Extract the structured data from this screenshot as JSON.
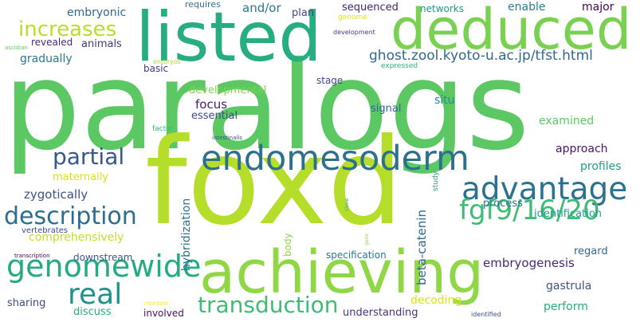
{
  "words": [
    {
      "text": "paralogs",
      "color": "#5cc863"
    },
    {
      "text": "foxd",
      "color": "#b5de2b"
    },
    {
      "text": "listed",
      "color": "#27ad81"
    },
    {
      "text": "deduced",
      "color": "#7ad151"
    },
    {
      "text": "achieving",
      "color": "#8fd744"
    },
    {
      "text": "endomesoderm",
      "color": "#2d708e"
    },
    {
      "text": "advantage",
      "color": "#2c728e"
    },
    {
      "text": "fgf9/16/20",
      "color": "#3dbc74"
    },
    {
      "text": "genomewide",
      "color": "#25ab82"
    },
    {
      "text": "description",
      "color": "#2e6d8e"
    },
    {
      "text": "real",
      "color": "#21918c"
    },
    {
      "text": "transduction",
      "color": "#3dbc74"
    },
    {
      "text": "increases",
      "color": "#b8de29"
    },
    {
      "text": "partial",
      "color": "#39568c"
    },
    {
      "text": "ghost.zool.kyoto-u.ac.jp/tfst.html",
      "color": "#30688e"
    },
    {
      "text": "comprehensively",
      "color": "#c2df23"
    },
    {
      "text": "zygotically",
      "color": "#3b528b"
    },
    {
      "text": "beta-catenin",
      "color": "#31688e"
    },
    {
      "text": "hybridization",
      "color": "#2c728e"
    },
    {
      "text": "embryogenesis",
      "color": "#482777"
    },
    {
      "text": "understanding",
      "color": "#46327e"
    },
    {
      "text": "embryonic",
      "color": "#31688e"
    },
    {
      "text": "and/or",
      "color": "#2a788e"
    },
    {
      "text": "plan",
      "color": "#404688"
    },
    {
      "text": "sequenced",
      "color": "#482071"
    },
    {
      "text": "networks",
      "color": "#1f958b"
    },
    {
      "text": "enable",
      "color": "#287d8e"
    },
    {
      "text": "major",
      "color": "#440154"
    },
    {
      "text": "requires",
      "color": "#2d708e"
    },
    {
      "text": "genome",
      "color": "#d8e219"
    },
    {
      "text": "development",
      "color": "#453781"
    },
    {
      "text": "revealed",
      "color": "#482979"
    },
    {
      "text": "animals",
      "color": "#443983"
    },
    {
      "text": "gradually",
      "color": "#2a788e"
    },
    {
      "text": "ascidian",
      "color": "#63cb5f"
    },
    {
      "text": "embryos",
      "color": "#a8db34"
    },
    {
      "text": "expressed",
      "color": "#2ab07f"
    },
    {
      "text": "basic",
      "color": "#443983"
    },
    {
      "text": "stage",
      "color": "#3f4788"
    },
    {
      "text": "developmental",
      "color": "#7fd34e"
    },
    {
      "text": "focus",
      "color": "#481a6c"
    },
    {
      "text": "essential",
      "color": "#404688"
    },
    {
      "text": "signal",
      "color": "#33638d"
    },
    {
      "text": "situ",
      "color": "#238a8d"
    },
    {
      "text": "examined",
      "color": "#5ec962"
    },
    {
      "text": "approach",
      "color": "#481467"
    },
    {
      "text": "profiles",
      "color": "#1fa088"
    },
    {
      "text": "factor",
      "color": "#35b779"
    },
    {
      "text": "intestinalis",
      "color": "#3b528b"
    },
    {
      "text": "maternally",
      "color": "#d5e21a"
    },
    {
      "text": "process",
      "color": "#2c728e"
    },
    {
      "text": "identification",
      "color": "#1fa088"
    },
    {
      "text": "regard",
      "color": "#31688e"
    },
    {
      "text": "vertebrates",
      "color": "#3e4a89"
    },
    {
      "text": "transcription",
      "color": "#440154"
    },
    {
      "text": "downstream",
      "color": "#375a8c"
    },
    {
      "text": "specification",
      "color": "#2a788e"
    },
    {
      "text": "body",
      "color": "#8fd744"
    },
    {
      "text": "study",
      "color": "#1fa088"
    },
    {
      "text": "clone",
      "color": "#2ab07f"
    },
    {
      "text": "gene",
      "color": "#95d840"
    },
    {
      "text": "gastrula",
      "color": "#3b528b"
    },
    {
      "text": "decoding",
      "color": "#d8e219"
    },
    {
      "text": "perform",
      "color": "#25ab82"
    },
    {
      "text": "sharing",
      "color": "#3e4989"
    },
    {
      "text": "discuss",
      "color": "#25ab82"
    },
    {
      "text": "involved",
      "color": "#471164"
    },
    {
      "text": "chordate",
      "color": "#fde725"
    },
    {
      "text": "identified",
      "color": "#3b528b"
    }
  ]
}
